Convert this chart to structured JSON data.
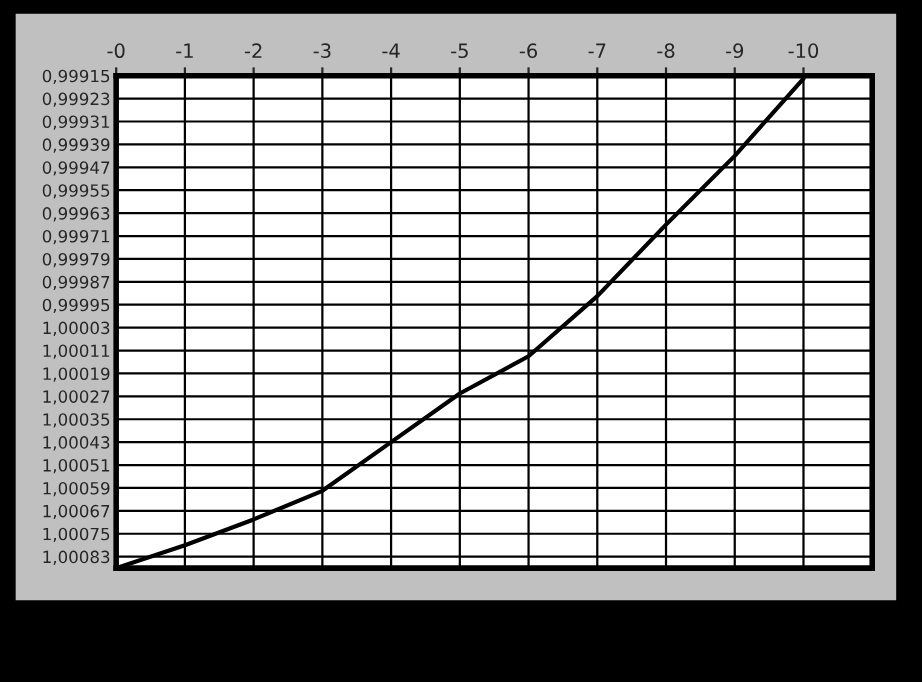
{
  "chart_data": {
    "type": "line",
    "x": [
      0,
      -1,
      -2,
      -3,
      -4,
      -5,
      -6,
      -7,
      -8,
      -9,
      -10
    ],
    "series": [
      {
        "color": "#000000",
        "values": [
          1.00087,
          1.00079,
          1.0007,
          1.0006,
          1.00043,
          1.00026,
          1.00013,
          0.99992,
          0.99967,
          0.99943,
          0.99916
        ]
      }
    ],
    "xlim": [
      0,
      -11
    ],
    "xticks": [
      {
        "value": 0,
        "label": "-0"
      },
      -1,
      -2,
      -3,
      -4,
      -5,
      -6,
      -7,
      -8,
      -9,
      {
        "value": -10,
        "label": "-10"
      }
    ],
    "ylim": [
      1.00087,
      0.99915
    ],
    "yticks": [
      {
        "value": 0.99915,
        "label": "0,99915"
      },
      {
        "value": 0.99923,
        "label": "0,99923"
      },
      {
        "value": 0.99931,
        "label": "0,99931"
      },
      {
        "value": 0.99939,
        "label": "0,99939"
      },
      {
        "value": 0.99947,
        "label": "0,99947"
      },
      {
        "value": 0.99955,
        "label": "0,99955"
      },
      {
        "value": 0.99963,
        "label": "0,99963"
      },
      {
        "value": 0.99971,
        "label": "0,99971"
      },
      {
        "value": 0.99979,
        "label": "0,99979"
      },
      {
        "value": 0.99987,
        "label": "0,99987"
      },
      {
        "value": 0.99995,
        "label": "0,99995"
      },
      {
        "value": 1.00003,
        "label": "1,00003"
      },
      {
        "value": 1.00011,
        "label": "1,00011"
      },
      {
        "value": 1.00019,
        "label": "1,00019"
      },
      {
        "value": 1.00027,
        "label": "1,00027"
      },
      {
        "value": 1.00035,
        "label": "1,00035"
      },
      {
        "value": 1.00043,
        "label": "1,00043"
      },
      {
        "value": 1.00051,
        "label": "1,00051"
      },
      {
        "value": 1.00059,
        "label": "1,00059"
      },
      {
        "value": 1.00067,
        "label": "1,00067"
      },
      {
        "value": 1.00075,
        "label": "1,00075"
      },
      {
        "value": 1.00083,
        "label": "1,00083"
      }
    ],
    "grid": true,
    "legend": false,
    "marker": "none",
    "line_style": "solid"
  }
}
